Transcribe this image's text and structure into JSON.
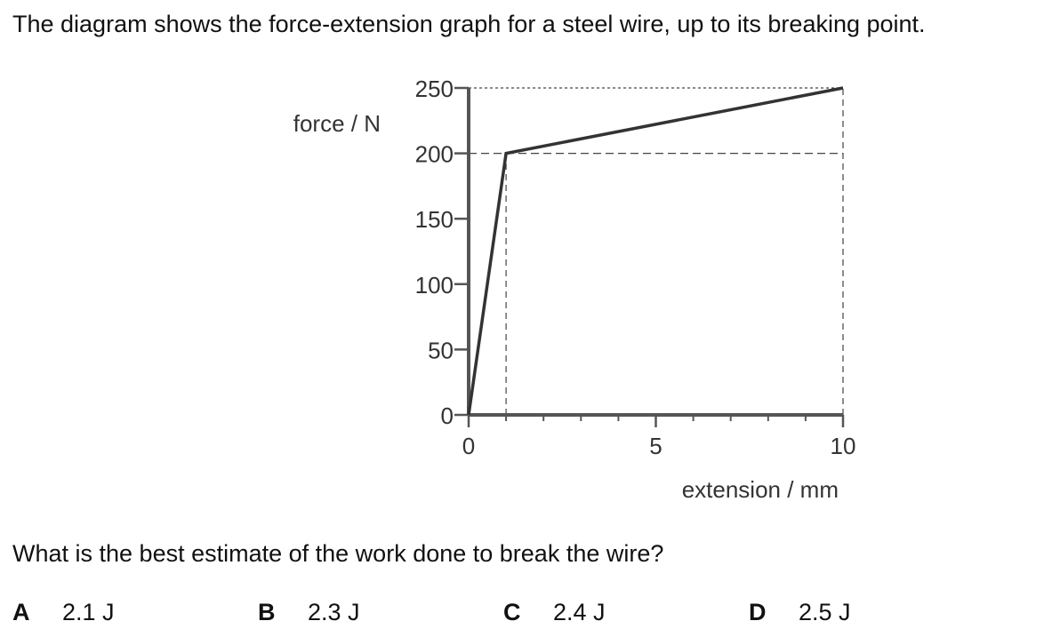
{
  "intro": "The diagram shows the force-extension graph for a steel wire, up to its breaking point.",
  "question": "What is the best estimate of the work done to break the wire?",
  "options": [
    {
      "letter": "A",
      "text": "2.1 J"
    },
    {
      "letter": "B",
      "text": "2.3 J"
    },
    {
      "letter": "C",
      "text": "2.4 J"
    },
    {
      "letter": "D",
      "text": "2.5 J"
    }
  ],
  "chart_data": {
    "type": "line",
    "title": "",
    "xlabel": "extension / mm",
    "ylabel": "force / N",
    "xlim": [
      0,
      10
    ],
    "ylim": [
      0,
      250
    ],
    "x_ticks": [
      "0",
      "5",
      "10"
    ],
    "y_ticks": [
      "0",
      "50",
      "100",
      "150",
      "200",
      "250"
    ],
    "x_minor_step": 1,
    "grid": false,
    "series": [
      {
        "x": [
          0,
          1,
          10
        ],
        "y": [
          0,
          200,
          250
        ]
      }
    ],
    "guides": {
      "horizontal": [
        200,
        250
      ],
      "vertical": [
        1,
        10
      ]
    },
    "colors": {
      "line": "#333333",
      "guide": "#444444",
      "axis": "#555555"
    }
  }
}
